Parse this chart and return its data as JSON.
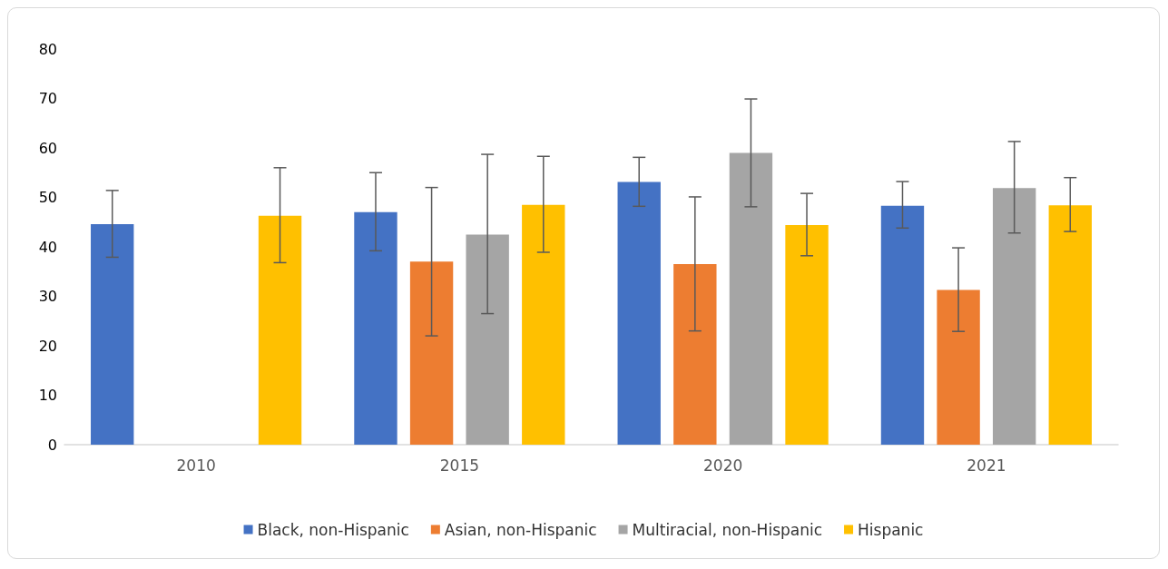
{
  "chart_data": {
    "type": "bar",
    "categories": [
      "2010",
      "2015",
      "2020",
      "2021"
    ],
    "ylim": [
      0,
      80
    ],
    "yticks": [
      0,
      10,
      20,
      30,
      40,
      50,
      60,
      70,
      80
    ],
    "grid": false,
    "legend": "bottom",
    "series": [
      {
        "name": "Black, non-Hispanic",
        "color": "#4472c4",
        "values": [
          44.6,
          47,
          53.1,
          48.3
        ],
        "errors": [
          [
            37.9,
            51.4
          ],
          [
            39.2,
            55
          ],
          [
            48.2,
            58.1
          ],
          [
            43.8,
            53.2
          ]
        ]
      },
      {
        "name": "Asian, non-Hispanic",
        "color": "#ed7d31",
        "values": [
          0,
          37,
          36.5,
          31.3
        ],
        "errors": [
          null,
          [
            22,
            52
          ],
          [
            23,
            50.1
          ],
          [
            22.9,
            39.8
          ]
        ]
      },
      {
        "name": "Multiracial, non-Hispanic",
        "color": "#a5a5a5",
        "values": [
          0,
          42.5,
          59,
          51.9
        ],
        "errors": [
          null,
          [
            26.5,
            58.7
          ],
          [
            48.1,
            69.9
          ],
          [
            42.8,
            61.3
          ]
        ]
      },
      {
        "name": "Hispanic",
        "color": "#ffc000",
        "values": [
          46.3,
          48.5,
          44.4,
          48.4
        ],
        "errors": [
          [
            36.8,
            56
          ],
          [
            38.9,
            58.3
          ],
          [
            38.2,
            50.8
          ],
          [
            43.1,
            54
          ]
        ]
      }
    ]
  }
}
